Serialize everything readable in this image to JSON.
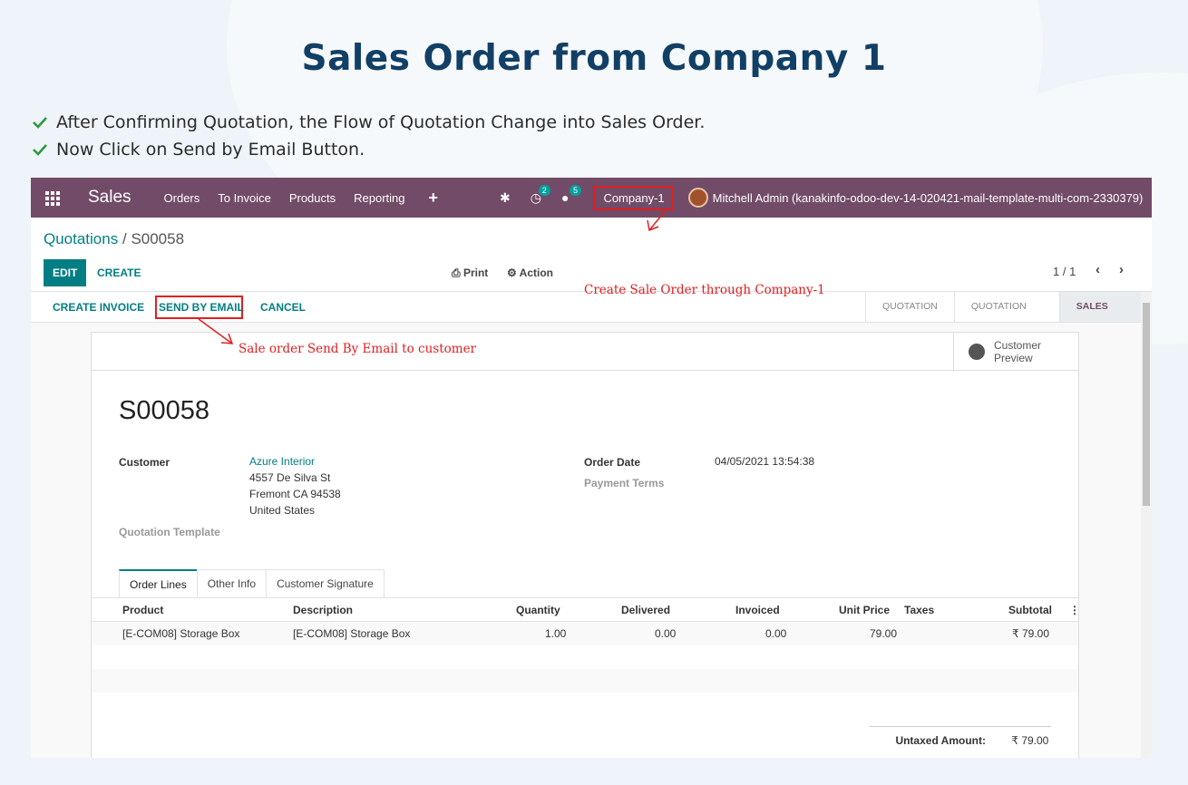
{
  "page": {
    "title": "Sales Order from Company 1",
    "bullets": [
      "After Confirming Quotation, the Flow of Quotation Change into Sales Order.",
      "Now Click on Send by Email Button."
    ]
  },
  "navbar": {
    "app_name": "Sales",
    "menu": [
      "Orders",
      "To Invoice",
      "Products",
      "Reporting"
    ],
    "activity_count": "2",
    "message_count": "5",
    "company": "Company-1",
    "user": "Mitchell Admin (kanakinfo-odoo-dev-14-020421-mail-template-multi-com-2330379)"
  },
  "control": {
    "breadcrumb_parent": "Quotations",
    "breadcrumb_sep": "/",
    "breadcrumb_current": "S00058",
    "edit": "EDIT",
    "create": "CREATE",
    "print": "Print",
    "action": "Action",
    "pager": "1 / 1"
  },
  "statusbar": {
    "create_invoice": "CREATE INVOICE",
    "send_by_email": "SEND BY EMAIL",
    "cancel": "CANCEL",
    "stages": [
      "QUOTATION",
      "QUOTATION SENT",
      "SALES ORDER"
    ]
  },
  "annotations": {
    "company_note": "Create Sale Order through Company-1",
    "email_note": "Sale order Send By Email to customer"
  },
  "sheet": {
    "customer_preview_line1": "Customer",
    "customer_preview_line2": "Preview",
    "name": "S00058",
    "customer_label": "Customer",
    "customer_name": "Azure Interior",
    "address1": "4557 De Silva St",
    "address2": "Fremont CA 94538",
    "address3": "United States",
    "quotation_template_label": "Quotation Template",
    "order_date_label": "Order Date",
    "order_date": "04/05/2021 13:54:38",
    "payment_terms_label": "Payment Terms",
    "tabs": [
      "Order Lines",
      "Other Info",
      "Customer Signature"
    ],
    "columns": [
      "Product",
      "Description",
      "Quantity",
      "Delivered",
      "Invoiced",
      "Unit Price",
      "Taxes",
      "Subtotal"
    ],
    "line": {
      "product": "[E-COM08] Storage Box",
      "description": "[E-COM08] Storage Box",
      "quantity": "1.00",
      "delivered": "0.00",
      "invoiced": "0.00",
      "unit_price": "79.00",
      "subtotal": "₹ 79.00"
    },
    "untaxed_label": "Untaxed Amount:",
    "untaxed_value": "₹ 79.00"
  }
}
